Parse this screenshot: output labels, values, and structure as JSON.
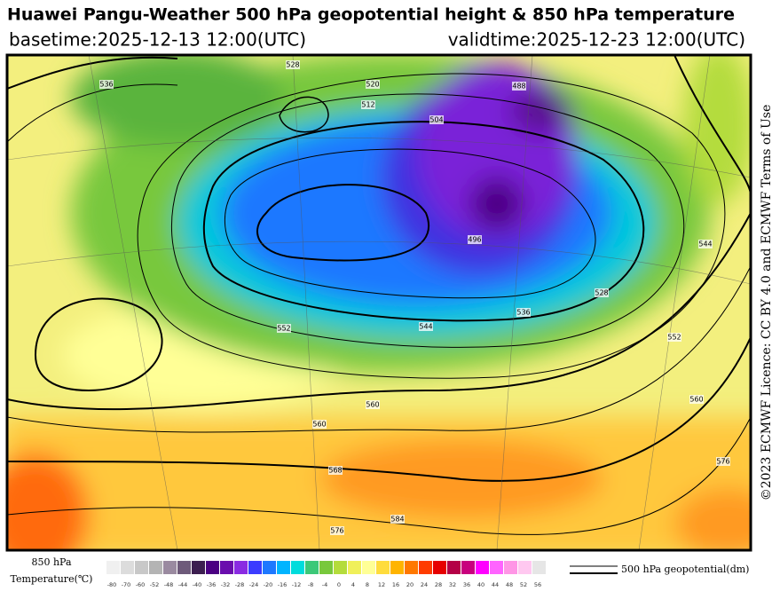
{
  "header": {
    "title": "Huawei Pangu-Weather 500 hPa geopotential height & 850 hPa temperature",
    "basetime": "basetime:2025-12-13 12:00(UTC)",
    "validtime": "validtime:2025-12-23 12:00(UTC)"
  },
  "map": {
    "contour_labels": [
      "536",
      "528",
      "520",
      "512",
      "504",
      "496",
      "488",
      "528",
      "536",
      "544",
      "552",
      "560",
      "560",
      "568",
      "576",
      "584",
      "552",
      "560",
      "576",
      "544"
    ]
  },
  "side_text": "©2023 ECMWF Licence: CC BY 4.0 and ECMWF Terms of Use",
  "legend": {
    "title_line1": "850 hPa",
    "title_line2": "Temperature(℃)",
    "colorbar": {
      "ticks": [
        -80,
        -70,
        -60,
        -52,
        -48,
        -44,
        -40,
        -36,
        -32,
        -28,
        -24,
        -20,
        -16,
        -12,
        -8,
        -4,
        0,
        4,
        8,
        12,
        16,
        20,
        24,
        28,
        32,
        36,
        40,
        44,
        48,
        52,
        56
      ],
      "colors": [
        "#f0f0f0",
        "#dcdcdc",
        "#c8c8c8",
        "#b4b4b4",
        "#9a8aa0",
        "#6e5a7a",
        "#3c1e50",
        "#4b0082",
        "#6a0dad",
        "#8a2be2",
        "#3c3cff",
        "#1e78ff",
        "#00b4ff",
        "#00dcdc",
        "#3cc878",
        "#78c83c",
        "#b4dc3c",
        "#f0f05a",
        "#ffff96",
        "#ffdc3c",
        "#ffb400",
        "#ff7800",
        "#ff3c00",
        "#e60000",
        "#b40046",
        "#c8007d",
        "#ff00ff",
        "#ff64ff",
        "#ff96e6",
        "#ffc8f0",
        "#e6e6e6"
      ]
    },
    "line_legend": "500 hPa geopotential(dm)"
  }
}
